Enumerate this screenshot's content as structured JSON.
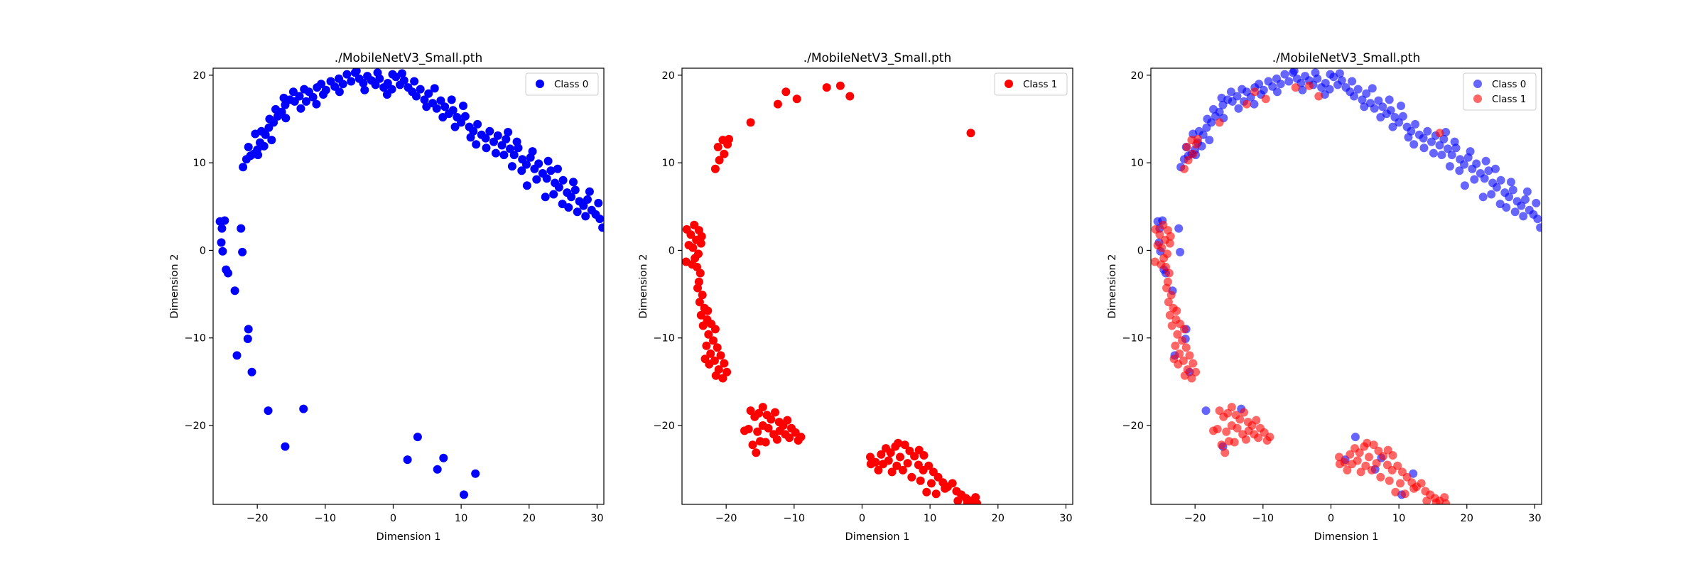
{
  "chart_data": [
    {
      "type": "scatter",
      "title": "./MobileNetV3_Small.pth",
      "xlabel": "Dimension 1",
      "ylabel": "Dimension 2",
      "xlim": [
        -26.5,
        31
      ],
      "ylim": [
        -29,
        20.8
      ],
      "xticks": [
        -20,
        -10,
        0,
        10,
        20,
        30
      ],
      "yticks": [
        -20,
        -10,
        0,
        10,
        20
      ],
      "grid": false,
      "legend": "top-right",
      "series": [
        {
          "name": "Class 0",
          "color": "#0000ff",
          "alpha": 1.0,
          "ref": "class0"
        }
      ]
    },
    {
      "type": "scatter",
      "title": "./MobileNetV3_Small.pth",
      "xlabel": "Dimension 1",
      "ylabel": "Dimension 2",
      "xlim": [
        -26.5,
        31
      ],
      "ylim": [
        -29,
        20.8
      ],
      "xticks": [
        -20,
        -10,
        0,
        10,
        20,
        30
      ],
      "yticks": [
        -20,
        -10,
        0,
        10,
        20
      ],
      "grid": false,
      "legend": "top-right",
      "series": [
        {
          "name": "Class 1",
          "color": "#ff0000",
          "alpha": 1.0,
          "ref": "class1"
        }
      ]
    },
    {
      "type": "scatter",
      "title": "./MobileNetV3_Small.pth",
      "xlabel": "Dimension 1",
      "ylabel": "Dimension 2",
      "xlim": [
        -26.5,
        31
      ],
      "ylim": [
        -29,
        20.8
      ],
      "xticks": [
        -20,
        -10,
        0,
        10,
        20,
        30
      ],
      "yticks": [
        -20,
        -10,
        0,
        10,
        20
      ],
      "grid": false,
      "legend": "top-right",
      "series": [
        {
          "name": "Class 0",
          "color": "#0000ff",
          "alpha": 0.6,
          "ref": "class0"
        },
        {
          "name": "Class 1",
          "color": "#ff0000",
          "alpha": 0.6,
          "ref": "class1"
        }
      ]
    }
  ],
  "points": {
    "class0": [
      [
        -25.5,
        3.3
      ],
      [
        -24.8,
        3.4
      ],
      [
        -25.2,
        2.5
      ],
      [
        -25.3,
        0.9
      ],
      [
        -25.1,
        -0.1
      ],
      [
        -24.6,
        -2.2
      ],
      [
        -24.3,
        -2.6
      ],
      [
        -23.3,
        -4.6
      ],
      [
        -22.4,
        2.5
      ],
      [
        -22.2,
        -0.2
      ],
      [
        -21.3,
        -9.0
      ],
      [
        -21.4,
        -10.1
      ],
      [
        -23.0,
        -12.0
      ],
      [
        -20.8,
        -13.9
      ],
      [
        -18.4,
        -18.3
      ],
      [
        -13.2,
        -18.1
      ],
      [
        -15.9,
        -22.4
      ],
      [
        3.6,
        -21.3
      ],
      [
        2.1,
        -23.9
      ],
      [
        7.4,
        -23.7
      ],
      [
        6.5,
        -25.0
      ],
      [
        12.1,
        -25.5
      ],
      [
        10.4,
        -27.9
      ],
      [
        -22.1,
        9.5
      ],
      [
        -21.6,
        10.4
      ],
      [
        -21.0,
        10.8
      ],
      [
        -21.3,
        11.8
      ],
      [
        -20.5,
        11.0
      ],
      [
        -20.0,
        11.5
      ],
      [
        -19.6,
        12.3
      ],
      [
        -19.0,
        11.9
      ],
      [
        -20.3,
        13.3
      ],
      [
        -19.4,
        13.6
      ],
      [
        -18.8,
        13.2
      ],
      [
        -18.3,
        14.0
      ],
      [
        -17.6,
        14.6
      ],
      [
        -18.2,
        15.0
      ],
      [
        -17.0,
        15.3
      ],
      [
        -16.4,
        15.8
      ],
      [
        -17.3,
        16.1
      ],
      [
        -15.9,
        16.6
      ],
      [
        -15.2,
        17.2
      ],
      [
        -16.1,
        17.4
      ],
      [
        -14.5,
        17.0
      ],
      [
        -13.8,
        17.6
      ],
      [
        -14.7,
        18.1
      ],
      [
        -13.1,
        18.4
      ],
      [
        -12.4,
        18.1
      ],
      [
        -11.8,
        17.5
      ],
      [
        -12.8,
        17.0
      ],
      [
        -11.2,
        18.6
      ],
      [
        -10.6,
        19.0
      ],
      [
        -9.9,
        18.3
      ],
      [
        -10.3,
        17.8
      ],
      [
        -9.2,
        19.3
      ],
      [
        -8.6,
        18.7
      ],
      [
        -8.0,
        19.6
      ],
      [
        -7.4,
        19.0
      ],
      [
        -6.8,
        20.1
      ],
      [
        -6.2,
        19.3
      ],
      [
        -5.6,
        20.3
      ],
      [
        -5.0,
        19.6
      ],
      [
        -4.4,
        19.1
      ],
      [
        -3.8,
        19.9
      ],
      [
        -3.2,
        19.4
      ],
      [
        -2.6,
        18.9
      ],
      [
        -2.0,
        19.6
      ],
      [
        -1.4,
        18.6
      ],
      [
        -0.8,
        19.1
      ],
      [
        -0.2,
        18.4
      ],
      [
        0.4,
        19.8
      ],
      [
        1.0,
        18.9
      ],
      [
        1.6,
        19.4
      ],
      [
        2.2,
        18.6
      ],
      [
        2.8,
        18.1
      ],
      [
        3.4,
        17.6
      ],
      [
        4.0,
        18.4
      ],
      [
        4.6,
        17.2
      ],
      [
        5.2,
        17.9
      ],
      [
        5.8,
        16.8
      ],
      [
        6.4,
        16.2
      ],
      [
        7.0,
        17.1
      ],
      [
        7.6,
        16.4
      ],
      [
        8.2,
        15.6
      ],
      [
        8.8,
        16.0
      ],
      [
        9.4,
        15.2
      ],
      [
        10.0,
        14.6
      ],
      [
        10.6,
        15.3
      ],
      [
        11.2,
        14.1
      ],
      [
        11.8,
        13.6
      ],
      [
        12.4,
        14.4
      ],
      [
        13.0,
        13.2
      ],
      [
        13.6,
        12.8
      ],
      [
        14.2,
        13.6
      ],
      [
        14.8,
        12.4
      ],
      [
        15.4,
        13.1
      ],
      [
        16.0,
        12.0
      ],
      [
        16.6,
        12.7
      ],
      [
        17.2,
        11.6
      ],
      [
        17.8,
        10.9
      ],
      [
        18.4,
        11.7
      ],
      [
        19.0,
        10.4
      ],
      [
        19.6,
        9.8
      ],
      [
        20.2,
        10.6
      ],
      [
        20.8,
        9.3
      ],
      [
        21.4,
        9.9
      ],
      [
        22.0,
        8.8
      ],
      [
        22.6,
        8.2
      ],
      [
        23.2,
        9.1
      ],
      [
        23.8,
        7.7
      ],
      [
        24.4,
        7.2
      ],
      [
        25.0,
        8.0
      ],
      [
        25.6,
        6.6
      ],
      [
        26.2,
        6.1
      ],
      [
        26.8,
        6.9
      ],
      [
        27.4,
        5.6
      ],
      [
        28.0,
        5.1
      ],
      [
        28.6,
        5.8
      ],
      [
        29.2,
        4.6
      ],
      [
        29.8,
        4.1
      ],
      [
        30.4,
        3.6
      ],
      [
        30.8,
        2.6
      ],
      [
        -5.4,
        20.5
      ],
      [
        -2.3,
        20.3
      ],
      [
        -7.9,
        18.1
      ],
      [
        -4.2,
        18.3
      ],
      [
        -0.9,
        17.8
      ],
      [
        4.9,
        16.4
      ],
      [
        7.3,
        15.2
      ],
      [
        9.1,
        14.1
      ],
      [
        11.4,
        12.9
      ],
      [
        13.7,
        11.7
      ],
      [
        16.3,
        10.9
      ],
      [
        18.9,
        9.1
      ],
      [
        21.1,
        8.1
      ],
      [
        23.6,
        6.4
      ],
      [
        25.8,
        4.9
      ],
      [
        28.3,
        3.9
      ],
      [
        19.7,
        7.4
      ],
      [
        22.4,
        6.1
      ],
      [
        24.9,
        5.3
      ],
      [
        27.1,
        4.4
      ],
      [
        17.5,
        9.6
      ],
      [
        15.1,
        11.1
      ],
      [
        12.2,
        12.1
      ],
      [
        -0.1,
        20.1
      ],
      [
        1.3,
        20.2
      ],
      [
        -11.3,
        16.7
      ],
      [
        -13.6,
        16.2
      ],
      [
        -15.8,
        15.1
      ],
      [
        -17.9,
        12.6
      ],
      [
        -19.9,
        10.9
      ],
      [
        20.5,
        11.3
      ],
      [
        22.8,
        10.2
      ],
      [
        24.2,
        9.3
      ],
      [
        26.5,
        7.8
      ],
      [
        28.9,
        6.7
      ],
      [
        30.2,
        5.4
      ],
      [
        18.2,
        12.4
      ],
      [
        16.9,
        13.5
      ],
      [
        10.3,
        16.5
      ],
      [
        8.6,
        17.2
      ],
      [
        6.1,
        18.5
      ],
      [
        3.1,
        19.3
      ]
    ],
    "class1": [
      [
        -25.8,
        2.4
      ],
      [
        -25.2,
        1.8
      ],
      [
        -24.7,
        2.9
      ],
      [
        -24.0,
        2.3
      ],
      [
        -23.6,
        1.6
      ],
      [
        -24.4,
        1.2
      ],
      [
        -25.5,
        0.6
      ],
      [
        -24.9,
        0.3
      ],
      [
        -24.1,
        -0.4
      ],
      [
        -23.7,
        0.8
      ],
      [
        -25.9,
        -1.3
      ],
      [
        -25.0,
        -1.6
      ],
      [
        -24.3,
        -1.9
      ],
      [
        -23.8,
        -2.6
      ],
      [
        -24.6,
        -0.9
      ],
      [
        -24.0,
        -3.6
      ],
      [
        -23.5,
        -5.1
      ],
      [
        -23.9,
        -5.9
      ],
      [
        -23.2,
        -6.6
      ],
      [
        -23.7,
        -7.4
      ],
      [
        -22.8,
        -7.9
      ],
      [
        -23.4,
        -8.6
      ],
      [
        -22.2,
        -8.4
      ],
      [
        -21.6,
        -9.0
      ],
      [
        -22.6,
        -9.6
      ],
      [
        -21.9,
        -10.3
      ],
      [
        -22.9,
        -10.9
      ],
      [
        -21.3,
        -11.1
      ],
      [
        -22.3,
        -11.8
      ],
      [
        -20.8,
        -12.0
      ],
      [
        -21.7,
        -12.6
      ],
      [
        -20.3,
        -12.9
      ],
      [
        -22.5,
        -13.0
      ],
      [
        -21.1,
        -13.6
      ],
      [
        -19.9,
        -13.9
      ],
      [
        -21.5,
        -14.3
      ],
      [
        -20.5,
        -14.6
      ],
      [
        -23.1,
        -12.4
      ],
      [
        -22.7,
        -6.9
      ],
      [
        -24.2,
        -4.3
      ],
      [
        -16.4,
        -18.3
      ],
      [
        -15.8,
        -19.0
      ],
      [
        -15.2,
        -18.6
      ],
      [
        -14.6,
        -17.9
      ],
      [
        -14.0,
        -18.8
      ],
      [
        -13.4,
        -19.3
      ],
      [
        -12.8,
        -18.5
      ],
      [
        -12.2,
        -19.6
      ],
      [
        -11.6,
        -20.0
      ],
      [
        -11.0,
        -19.4
      ],
      [
        -10.4,
        -20.3
      ],
      [
        -9.8,
        -20.8
      ],
      [
        -10.7,
        -21.4
      ],
      [
        -9.4,
        -21.7
      ],
      [
        -11.3,
        -21.0
      ],
      [
        -12.1,
        -20.6
      ],
      [
        -13.0,
        -21.0
      ],
      [
        -13.8,
        -20.3
      ],
      [
        -14.6,
        -20.0
      ],
      [
        -15.4,
        -20.7
      ],
      [
        -16.7,
        -20.4
      ],
      [
        -17.3,
        -20.6
      ],
      [
        -15.0,
        -21.8
      ],
      [
        -14.2,
        -21.9
      ],
      [
        -16.1,
        -22.2
      ],
      [
        -15.6,
        -23.1
      ],
      [
        -9.0,
        -21.3
      ],
      [
        -12.5,
        -21.6
      ],
      [
        1.2,
        -23.6
      ],
      [
        2.0,
        -24.2
      ],
      [
        2.8,
        -23.3
      ],
      [
        3.5,
        -22.6
      ],
      [
        4.2,
        -23.1
      ],
      [
        4.9,
        -22.4
      ],
      [
        5.6,
        -23.6
      ],
      [
        6.3,
        -22.2
      ],
      [
        7.0,
        -22.9
      ],
      [
        7.7,
        -23.5
      ],
      [
        8.4,
        -22.8
      ],
      [
        9.1,
        -23.4
      ],
      [
        3.1,
        -24.4
      ],
      [
        3.9,
        -24.0
      ],
      [
        5.1,
        -24.6
      ],
      [
        6.0,
        -25.1
      ],
      [
        1.3,
        -24.4
      ],
      [
        8.3,
        -24.5
      ],
      [
        9.0,
        -25.1
      ],
      [
        9.8,
        -24.6
      ],
      [
        10.5,
        -25.3
      ],
      [
        11.2,
        -25.9
      ],
      [
        11.9,
        -26.5
      ],
      [
        12.6,
        -27.0
      ],
      [
        13.3,
        -26.6
      ],
      [
        13.9,
        -27.5
      ],
      [
        14.6,
        -27.9
      ],
      [
        15.3,
        -28.3
      ],
      [
        16.0,
        -28.6
      ],
      [
        16.7,
        -28.2
      ],
      [
        16.9,
        -28.9
      ],
      [
        15.5,
        -28.8
      ],
      [
        10.2,
        -26.6
      ],
      [
        8.6,
        -26.3
      ],
      [
        7.3,
        -25.9
      ],
      [
        9.5,
        -27.6
      ],
      [
        10.9,
        -27.8
      ],
      [
        12.2,
        -27.2
      ],
      [
        14.1,
        -28.6
      ],
      [
        6.7,
        -24.3
      ],
      [
        4.4,
        -25.3
      ],
      [
        2.4,
        -25.1
      ],
      [
        5.3,
        -22.0
      ],
      [
        -21.6,
        9.3
      ],
      [
        -21.0,
        10.3
      ],
      [
        -20.3,
        11.0
      ],
      [
        -21.2,
        11.8
      ],
      [
        -20.5,
        12.6
      ],
      [
        -19.8,
        12.1
      ],
      [
        -19.6,
        12.7
      ],
      [
        -16.4,
        14.6
      ],
      [
        -12.4,
        16.7
      ],
      [
        -11.2,
        18.1
      ],
      [
        -9.6,
        17.3
      ],
      [
        -5.2,
        18.6
      ],
      [
        -3.2,
        18.8
      ],
      [
        -1.8,
        17.6
      ],
      [
        16.0,
        13.4
      ]
    ]
  }
}
